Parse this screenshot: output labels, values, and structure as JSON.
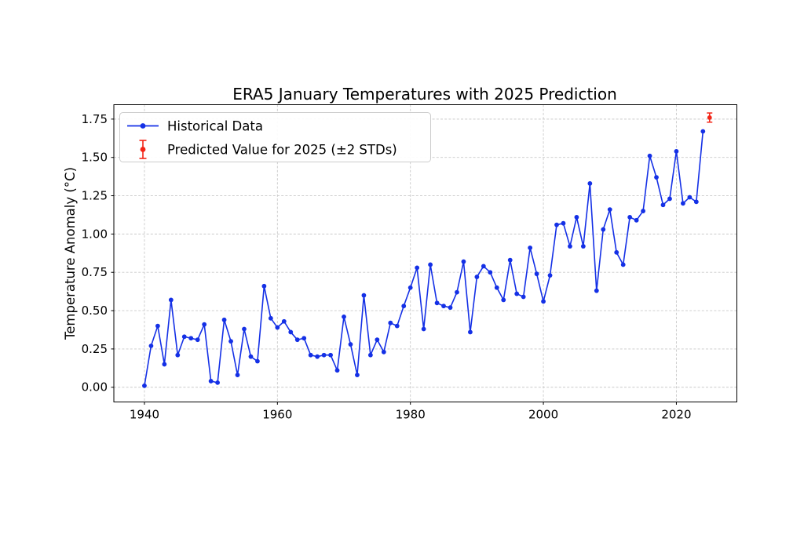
{
  "figure": {
    "title": "ERA5 January Temperatures with 2025 Prediction",
    "ylabel": "Temperature Anomaly (°C)",
    "background": "#ffffff",
    "spine_color": "#000000",
    "grid_color": "#c9c9c9",
    "text_color": "#000000"
  },
  "legend": {
    "historical_label": "Historical Data",
    "predicted_label": "Predicted Value for 2025 (±2 STDs)",
    "historical_color": "#1430e6",
    "predicted_color": "#f32517"
  },
  "chart_data": {
    "type": "line",
    "title": "ERA5 January Temperatures with 2025 Prediction",
    "xlabel": "",
    "ylabel": "Temperature Anomaly (°C)",
    "xlim": [
      1935.4,
      2029.1
    ],
    "ylim": [
      -0.096,
      1.844
    ],
    "xticks": [
      1940,
      1960,
      1980,
      2000,
      2020
    ],
    "yticks": [
      0.0,
      0.25,
      0.5,
      0.75,
      1.0,
      1.25,
      1.5,
      1.75
    ],
    "grid": "dashed",
    "legend_position": "upper-left",
    "series": [
      {
        "name": "Historical Data",
        "type": "line+marker",
        "color": "#1430e6",
        "x": [
          1940,
          1941,
          1942,
          1943,
          1944,
          1945,
          1946,
          1947,
          1948,
          1949,
          1950,
          1951,
          1952,
          1953,
          1954,
          1955,
          1956,
          1957,
          1958,
          1959,
          1960,
          1961,
          1962,
          1963,
          1964,
          1965,
          1966,
          1967,
          1968,
          1969,
          1970,
          1971,
          1972,
          1973,
          1974,
          1975,
          1976,
          1977,
          1978,
          1979,
          1980,
          1981,
          1982,
          1983,
          1984,
          1985,
          1986,
          1987,
          1988,
          1989,
          1990,
          1991,
          1992,
          1993,
          1994,
          1995,
          1996,
          1997,
          1998,
          1999,
          2000,
          2001,
          2002,
          2003,
          2004,
          2005,
          2006,
          2007,
          2008,
          2009,
          2010,
          2011,
          2012,
          2013,
          2014,
          2015,
          2016,
          2017,
          2018,
          2019,
          2020,
          2021,
          2022,
          2023,
          2024
        ],
        "y": [
          0.01,
          0.27,
          0.4,
          0.15,
          0.57,
          0.21,
          0.33,
          0.32,
          0.31,
          0.41,
          0.04,
          0.03,
          0.44,
          0.3,
          0.08,
          0.38,
          0.2,
          0.17,
          0.66,
          0.45,
          0.39,
          0.43,
          0.36,
          0.31,
          0.32,
          0.21,
          0.2,
          0.21,
          0.21,
          0.11,
          0.46,
          0.28,
          0.08,
          0.6,
          0.21,
          0.31,
          0.23,
          0.42,
          0.4,
          0.53,
          0.65,
          0.78,
          0.38,
          0.8,
          0.55,
          0.53,
          0.52,
          0.62,
          0.82,
          0.36,
          0.72,
          0.79,
          0.75,
          0.65,
          0.57,
          0.83,
          0.61,
          0.59,
          0.91,
          0.74,
          0.56,
          0.73,
          1.06,
          1.07,
          0.92,
          1.11,
          0.92,
          1.33,
          0.63,
          1.03,
          1.16,
          0.88,
          0.8,
          1.11,
          1.09,
          1.15,
          1.51,
          1.37,
          1.19,
          1.23,
          1.54,
          1.2,
          1.24,
          1.21,
          1.67
        ]
      },
      {
        "name": "Predicted Value for 2025 (±2 STDs)",
        "type": "errorbar",
        "color": "#f32517",
        "x": [
          2025
        ],
        "y": [
          1.76
        ],
        "yerr": [
          0.03
        ]
      }
    ]
  }
}
